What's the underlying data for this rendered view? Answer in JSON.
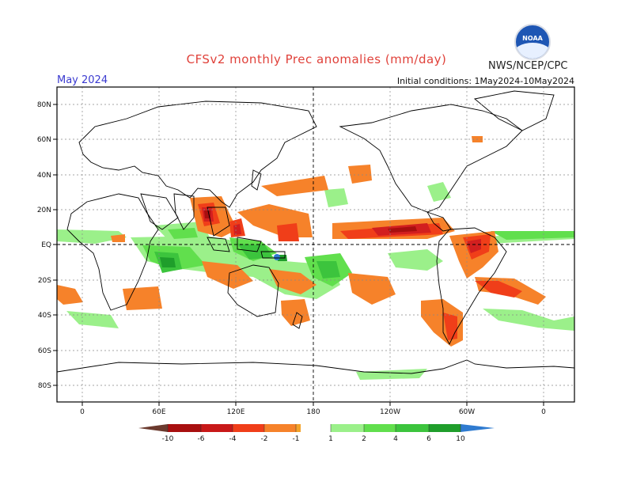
{
  "header": {
    "title": "CFSv2 monthly Prec anomalies (mm/day)",
    "month": "May 2024",
    "initial_conditions": "Initial conditions: 1May2024-10May2024",
    "agency": "NWS/NCEP/CPC",
    "logo_text": "NOAA"
  },
  "axes": {
    "lat_labels": [
      "80N",
      "60N",
      "40N",
      "20N",
      "EQ",
      "20S",
      "40S",
      "60S",
      "80S"
    ],
    "lon_labels": [
      "0",
      "60E",
      "120E",
      "180",
      "120W",
      "60W",
      "0"
    ]
  },
  "colorbar": {
    "labels": [
      "-10",
      "-6",
      "-4",
      "-2",
      "-1",
      "1",
      "2",
      "4",
      "6",
      "10"
    ],
    "colors": [
      "#6b3a2e",
      "#a80f0f",
      "#d21f1f",
      "#f03e19",
      "#f6822a",
      "#f4a32a",
      "#ffffff",
      "#9bf08a",
      "#61df4d",
      "#3cc43d",
      "#1f9e2b",
      "#137f22",
      "#2f7bd0"
    ]
  }
}
